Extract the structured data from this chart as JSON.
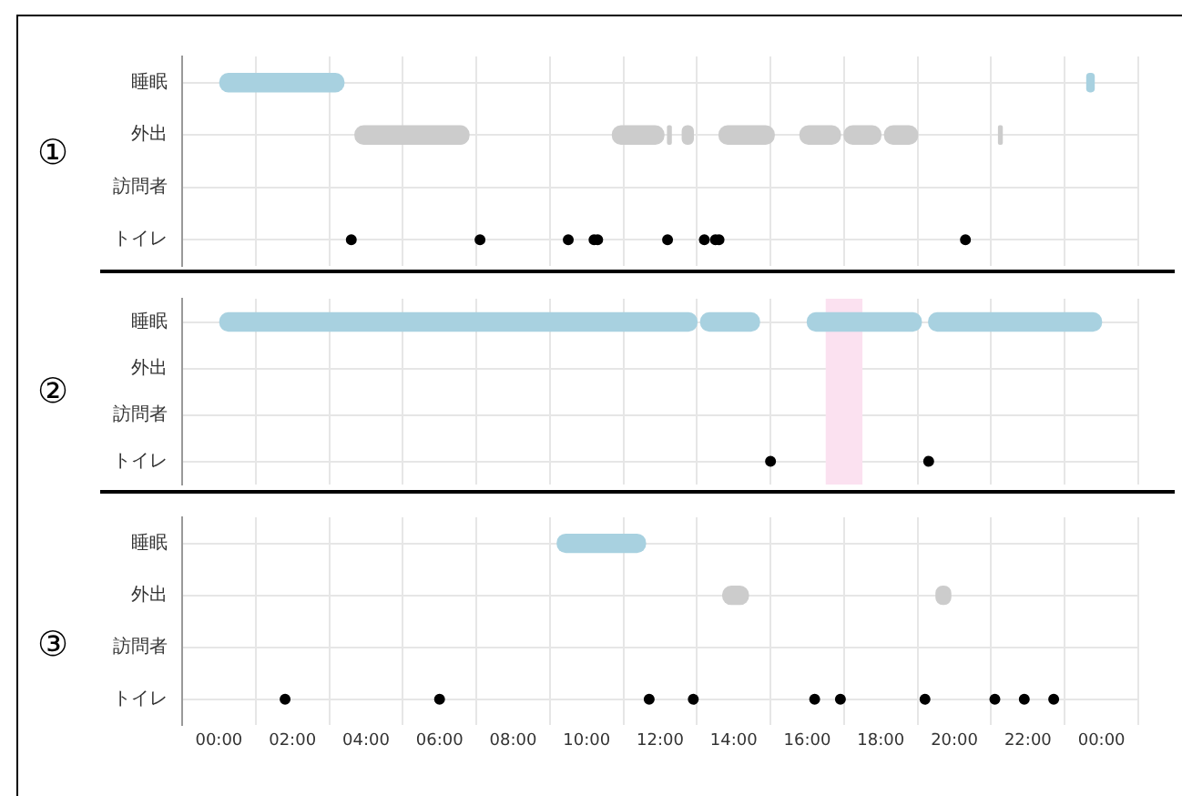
{
  "chart_data": [
    {
      "type": "bar",
      "orientation": "horizontal",
      "annotations": [
        "①"
      ],
      "categories": [
        "睡眠",
        "外出",
        "訪問者",
        "トイレ"
      ],
      "xlim": [
        0,
        24
      ],
      "xticks": [
        0,
        2,
        4,
        6,
        8,
        10,
        12,
        14,
        16,
        18,
        20,
        22,
        24
      ],
      "tick_labels": "y",
      "grid": true,
      "legend": false,
      "series": [
        {
          "type": "bar",
          "color": "#a8d1e0",
          "base": [
            0,
            null,
            null,
            null
          ],
          "values": [
            3.4,
            null,
            null,
            null
          ]
        },
        {
          "type": "bar",
          "color": "#a8d1e0",
          "base": [
            23.6,
            null,
            null,
            null
          ],
          "values": [
            0.2,
            null,
            null,
            null
          ]
        },
        {
          "type": "bar",
          "color": "#cccccc",
          "base": [
            null,
            3.7,
            null,
            null
          ],
          "values": [
            null,
            3.1,
            null,
            null
          ]
        },
        {
          "type": "bar",
          "color": "#cccccc",
          "base": [
            null,
            10.7,
            null,
            null
          ],
          "values": [
            null,
            1.4,
            null,
            null
          ]
        },
        {
          "type": "bar",
          "color": "#cccccc",
          "base": [
            null,
            12.2,
            null,
            null
          ],
          "values": [
            null,
            0.1,
            null,
            null
          ]
        },
        {
          "type": "bar",
          "color": "#cccccc",
          "base": [
            null,
            12.6,
            null,
            null
          ],
          "values": [
            null,
            0.3,
            null,
            null
          ]
        },
        {
          "type": "bar",
          "color": "#cccccc",
          "base": [
            null,
            13.6,
            null,
            null
          ],
          "values": [
            null,
            1.5,
            null,
            null
          ]
        },
        {
          "type": "bar",
          "color": "#cccccc",
          "base": [
            null,
            15.8,
            null,
            null
          ],
          "values": [
            null,
            1.1,
            null,
            null
          ]
        },
        {
          "type": "bar",
          "color": "#cccccc",
          "base": [
            null,
            17.0,
            null,
            null
          ],
          "values": [
            null,
            1.0,
            null,
            null
          ]
        },
        {
          "type": "bar",
          "color": "#cccccc",
          "base": [
            null,
            18.1,
            null,
            null
          ],
          "values": [
            null,
            0.9,
            null,
            null
          ]
        },
        {
          "type": "bar",
          "color": "#cccccc",
          "base": [
            null,
            21.2,
            null,
            null
          ],
          "values": [
            null,
            0.1,
            null,
            null
          ]
        },
        {
          "type": "scatter",
          "color": "#000000",
          "marker": "circle",
          "x": [
            "トイレ",
            "トイレ",
            "トイレ",
            "トイレ",
            "トイレ",
            "トイレ",
            "トイレ",
            "トイレ",
            "トイレ",
            "トイレ"
          ],
          "values": [
            3.6,
            7.1,
            9.5,
            10.2,
            10.3,
            12.2,
            13.2,
            13.5,
            13.6,
            20.3
          ]
        }
      ]
    },
    {
      "type": "bar",
      "orientation": "horizontal",
      "annotations": [
        "②"
      ],
      "categories": [
        "睡眠",
        "外出",
        "訪問者",
        "トイレ"
      ],
      "xlim": [
        0,
        24
      ],
      "xticks": [
        0,
        2,
        4,
        6,
        8,
        10,
        12,
        14,
        16,
        18,
        20,
        22,
        24
      ],
      "tick_labels": "y",
      "grid": true,
      "legend": false,
      "bands": [
        {
          "axis": "x",
          "from": 16.5,
          "to": 17.5,
          "color": "#fbe1f0"
        }
      ],
      "series": [
        {
          "type": "bar",
          "color": "#a8d1e0",
          "base": [
            0,
            null,
            null,
            null
          ],
          "values": [
            13.0,
            null,
            null,
            null
          ]
        },
        {
          "type": "bar",
          "color": "#a8d1e0",
          "base": [
            13.1,
            null,
            null,
            null
          ],
          "values": [
            1.6,
            null,
            null,
            null
          ]
        },
        {
          "type": "bar",
          "color": "#a8d1e0",
          "base": [
            16.0,
            null,
            null,
            null
          ],
          "values": [
            3.1,
            null,
            null,
            null
          ]
        },
        {
          "type": "bar",
          "color": "#a8d1e0",
          "base": [
            19.3,
            null,
            null,
            null
          ],
          "values": [
            4.7,
            null,
            null,
            null
          ]
        },
        {
          "type": "scatter",
          "color": "#000000",
          "marker": "circle",
          "x": [
            "トイレ",
            "トイレ"
          ],
          "values": [
            15.0,
            19.3
          ]
        }
      ]
    },
    {
      "type": "bar",
      "orientation": "horizontal",
      "annotations": [
        "③"
      ],
      "categories": [
        "睡眠",
        "外出",
        "訪問者",
        "トイレ"
      ],
      "xlim": [
        0,
        24
      ],
      "xticks": [
        {
          "value": 0,
          "label": "00:00"
        },
        {
          "value": 2,
          "label": "02:00"
        },
        {
          "value": 4,
          "label": "04:00"
        },
        {
          "value": 6,
          "label": "06:00"
        },
        {
          "value": 8,
          "label": "08:00"
        },
        {
          "value": 10,
          "label": "10:00"
        },
        {
          "value": 12,
          "label": "12:00"
        },
        {
          "value": 14,
          "label": "14:00"
        },
        {
          "value": 16,
          "label": "16:00"
        },
        {
          "value": 18,
          "label": "18:00"
        },
        {
          "value": 20,
          "label": "20:00"
        },
        {
          "value": 22,
          "label": "22:00"
        },
        {
          "value": 24,
          "label": "00:00"
        }
      ],
      "grid": true,
      "legend": false,
      "series": [
        {
          "type": "bar",
          "color": "#a8d1e0",
          "base": [
            9.2,
            null,
            null,
            null
          ],
          "values": [
            2.4,
            null,
            null,
            null
          ]
        },
        {
          "type": "bar",
          "color": "#cccccc",
          "base": [
            null,
            13.7,
            null,
            null
          ],
          "values": [
            null,
            0.7,
            null,
            null
          ]
        },
        {
          "type": "bar",
          "color": "#cccccc",
          "base": [
            null,
            19.5,
            null,
            null
          ],
          "values": [
            null,
            0.4,
            null,
            null
          ]
        },
        {
          "type": "scatter",
          "color": "#000000",
          "marker": "circle",
          "x": [
            "トイレ",
            "トイレ",
            "トイレ",
            "トイレ",
            "トイレ",
            "トイレ",
            "トイレ",
            "トイレ",
            "トイレ",
            "トイレ"
          ],
          "values": [
            1.8,
            6.0,
            11.7,
            12.9,
            16.2,
            16.9,
            19.2,
            21.1,
            21.9,
            22.7
          ]
        }
      ]
    }
  ]
}
